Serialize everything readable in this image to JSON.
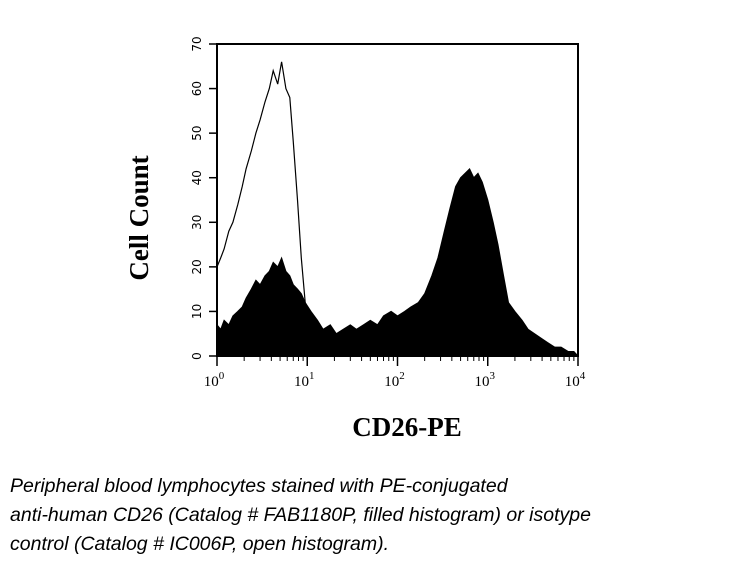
{
  "caption": {
    "lines": [
      "Peripheral blood lymphocytes stained with PE-conjugated",
      "anti-human CD26 (Catalog # FAB1180P, filled histogram) or isotype",
      "control (Catalog # IC006P, open histogram)."
    ]
  },
  "chart_data": {
    "type": "area",
    "xlabel": "CD26-PE",
    "ylabel": "Cell Count",
    "x_scale": "log",
    "xlim": [
      1,
      10000
    ],
    "ylim": [
      0,
      70
    ],
    "y_ticks": [
      "0",
      "10",
      "20",
      "30",
      "40",
      "50",
      "60",
      "70"
    ],
    "x_ticks": [
      {
        "base": "10",
        "exp": "0"
      },
      {
        "base": "10",
        "exp": "1"
      },
      {
        "base": "10",
        "exp": "2"
      },
      {
        "base": "10",
        "exp": "3"
      },
      {
        "base": "10",
        "exp": "4"
      }
    ],
    "grid": false,
    "legend": "none",
    "series": [
      {
        "style": "filled",
        "x": [
          1,
          1.1,
          1.2,
          1.35,
          1.5,
          1.7,
          1.9,
          2.1,
          2.4,
          2.7,
          3.0,
          3.4,
          3.8,
          4.2,
          4.7,
          5.2,
          5.8,
          6.4,
          7.0,
          7.8,
          8.6,
          9.5,
          11,
          13,
          15,
          18,
          21,
          25,
          30,
          35,
          42,
          50,
          60,
          70,
          85,
          100,
          120,
          140,
          170,
          200,
          240,
          280,
          330,
          380,
          440,
          500,
          560,
          630,
          700,
          780,
          870,
          1000,
          1150,
          1300,
          1500,
          1700,
          2000,
          2400,
          2800,
          3300,
          3900,
          4600,
          5500,
          6500,
          7800,
          9000,
          10000
        ],
        "y": [
          7,
          6,
          8,
          7,
          9,
          10,
          11,
          13,
          15,
          17,
          16,
          18,
          19,
          21,
          20,
          22,
          19,
          18,
          16,
          15,
          14,
          12,
          10,
          8,
          6,
          7,
          5,
          6,
          7,
          6,
          7,
          8,
          7,
          9,
          10,
          9,
          10,
          11,
          12,
          14,
          18,
          22,
          28,
          33,
          38,
          40,
          41,
          42,
          40,
          41,
          39,
          35,
          30,
          25,
          18,
          12,
          10,
          8,
          6,
          5,
          4,
          3,
          2,
          2,
          1,
          1,
          0
        ]
      },
      {
        "style": "open",
        "x": [
          1,
          1.1,
          1.2,
          1.35,
          1.5,
          1.7,
          1.9,
          2.1,
          2.4,
          2.7,
          3.0,
          3.4,
          3.8,
          4.2,
          4.7,
          5.2,
          5.8,
          6.4,
          7.0,
          7.8,
          8.6,
          9.5,
          11,
          13,
          15,
          18,
          21,
          25,
          30
        ],
        "y": [
          20,
          22,
          24,
          28,
          30,
          34,
          38,
          42,
          46,
          50,
          53,
          57,
          60,
          64,
          61,
          66,
          60,
          58,
          48,
          35,
          22,
          12,
          9,
          7,
          6,
          5,
          4,
          3,
          3
        ]
      }
    ]
  }
}
